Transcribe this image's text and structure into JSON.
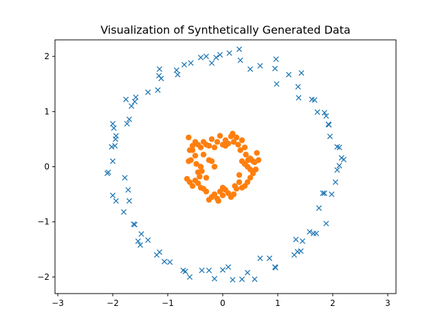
{
  "chart_data": {
    "type": "scatter",
    "title": "Visualization of Synthetically Generated Data",
    "xlabel": "",
    "ylabel": "",
    "xlim": [
      -3.05,
      3.15
    ],
    "ylim": [
      -2.3,
      2.3
    ],
    "xticks": [
      -3,
      -2,
      -1,
      0,
      1,
      2,
      3
    ],
    "yticks": [
      -2,
      -1,
      0,
      1,
      2
    ],
    "grid": false,
    "series": [
      {
        "marker": "x",
        "color": "#1f77b4",
        "points": [
          [
            -2.1,
            -0.12
          ],
          [
            -2.08,
            -0.1
          ],
          [
            -2.0,
            -0.52
          ],
          [
            -1.94,
            -0.62
          ],
          [
            -1.8,
            -0.82
          ],
          [
            -1.72,
            -0.42
          ],
          [
            -1.7,
            -0.62
          ],
          [
            -1.78,
            -0.2
          ],
          [
            -1.62,
            -1.04
          ],
          [
            -1.6,
            -1.05
          ],
          [
            -1.54,
            -1.35
          ],
          [
            -1.5,
            -1.42
          ],
          [
            -1.48,
            -1.22
          ],
          [
            -1.36,
            -1.33
          ],
          [
            -1.2,
            -1.6
          ],
          [
            -1.15,
            -1.55
          ],
          [
            -1.06,
            -1.72
          ],
          [
            -0.96,
            -1.73
          ],
          [
            -0.72,
            -1.88
          ],
          [
            -0.68,
            -1.9
          ],
          [
            -0.6,
            -2.0
          ],
          [
            -0.38,
            -1.88
          ],
          [
            -0.25,
            -1.88
          ],
          [
            -0.15,
            -2.03
          ],
          [
            0.0,
            -1.87
          ],
          [
            0.1,
            -1.82
          ],
          [
            0.18,
            -2.05
          ],
          [
            0.35,
            -2.04
          ],
          [
            0.45,
            -1.92
          ],
          [
            0.58,
            -2.04
          ],
          [
            0.68,
            -1.66
          ],
          [
            0.85,
            -1.66
          ],
          [
            0.95,
            -1.82
          ],
          [
            0.96,
            -1.83
          ],
          [
            1.3,
            -1.6
          ],
          [
            1.33,
            -1.32
          ],
          [
            1.36,
            -1.54
          ],
          [
            1.42,
            -1.53
          ],
          [
            1.45,
            -1.35
          ],
          [
            1.58,
            -1.18
          ],
          [
            1.65,
            -1.21
          ],
          [
            1.7,
            -1.21
          ],
          [
            1.75,
            -0.75
          ],
          [
            1.82,
            -0.48
          ],
          [
            1.85,
            -0.48
          ],
          [
            1.88,
            -1.03
          ],
          [
            1.98,
            -0.5
          ],
          [
            2.05,
            -0.28
          ],
          [
            2.08,
            -0.06
          ],
          [
            2.12,
            0.02
          ],
          [
            2.16,
            0.16
          ],
          [
            2.2,
            0.13
          ],
          [
            2.12,
            0.35
          ],
          [
            2.08,
            0.36
          ],
          [
            1.95,
            0.55
          ],
          [
            1.93,
            0.76
          ],
          [
            1.92,
            0.77
          ],
          [
            1.88,
            0.92
          ],
          [
            1.85,
            0.98
          ],
          [
            1.72,
            0.99
          ],
          [
            1.67,
            1.21
          ],
          [
            1.62,
            1.22
          ],
          [
            1.38,
            1.25
          ],
          [
            1.37,
            1.45
          ],
          [
            1.43,
            1.7
          ],
          [
            1.2,
            1.67
          ],
          [
            0.98,
            1.5
          ],
          [
            0.95,
            1.78
          ],
          [
            0.97,
            1.95
          ],
          [
            0.68,
            1.83
          ],
          [
            0.5,
            1.77
          ],
          [
            0.32,
            1.93
          ],
          [
            0.3,
            2.13
          ],
          [
            0.12,
            2.06
          ],
          [
            -0.05,
            2.03
          ],
          [
            -0.12,
            1.98
          ],
          [
            -0.2,
            1.88
          ],
          [
            -0.3,
            2.0
          ],
          [
            -0.4,
            1.98
          ],
          [
            -0.58,
            1.88
          ],
          [
            -0.7,
            1.85
          ],
          [
            -0.82,
            1.67
          ],
          [
            -0.84,
            1.75
          ],
          [
            -1.12,
            1.6
          ],
          [
            -1.15,
            1.77
          ],
          [
            -1.16,
            1.65
          ],
          [
            -1.18,
            1.39
          ],
          [
            -1.36,
            1.35
          ],
          [
            -1.58,
            1.26
          ],
          [
            -1.6,
            1.18
          ],
          [
            -1.66,
            1.1
          ],
          [
            -1.76,
            1.22
          ],
          [
            -1.7,
            0.86
          ],
          [
            -1.74,
            0.78
          ],
          [
            -1.94,
            0.56
          ],
          [
            -1.95,
            0.5
          ],
          [
            -1.96,
            0.38
          ],
          [
            -1.98,
            0.7
          ],
          [
            -2.0,
            0.78
          ],
          [
            -2.02,
            0.36
          ],
          [
            -2.0,
            0.1
          ]
        ]
      },
      {
        "marker": "o",
        "color": "#ff7f0e",
        "points": [
          [
            -0.62,
            0.53
          ],
          [
            -0.6,
            0.3
          ],
          [
            -0.55,
            0.38
          ],
          [
            -0.5,
            0.45
          ],
          [
            -0.45,
            0.4
          ],
          [
            -0.4,
            0.35
          ],
          [
            -0.35,
            0.45
          ],
          [
            -0.3,
            0.4
          ],
          [
            -0.25,
            0.38
          ],
          [
            -0.2,
            0.5
          ],
          [
            -0.15,
            0.35
          ],
          [
            -0.1,
            0.45
          ],
          [
            -0.05,
            0.56
          ],
          [
            0.0,
            0.4
          ],
          [
            0.05,
            0.48
          ],
          [
            0.1,
            0.42
          ],
          [
            0.15,
            0.55
          ],
          [
            0.18,
            0.6
          ],
          [
            0.2,
            0.45
          ],
          [
            0.25,
            0.53
          ],
          [
            0.28,
            0.4
          ],
          [
            0.32,
            0.3
          ],
          [
            0.35,
            0.48
          ],
          [
            0.4,
            0.35
          ],
          [
            0.42,
            0.22
          ],
          [
            0.46,
            0.12
          ],
          [
            0.5,
            0.15
          ],
          [
            0.55,
            0.1
          ],
          [
            0.58,
            0.08
          ],
          [
            0.62,
            0.25
          ],
          [
            0.65,
            0.12
          ],
          [
            0.6,
            -0.05
          ],
          [
            0.55,
            -0.12
          ],
          [
            0.5,
            -0.2
          ],
          [
            0.45,
            -0.28
          ],
          [
            0.4,
            -0.35
          ],
          [
            0.35,
            -0.38
          ],
          [
            0.3,
            -0.28
          ],
          [
            0.25,
            -0.4
          ],
          [
            0.2,
            -0.5
          ],
          [
            0.15,
            -0.55
          ],
          [
            0.1,
            -0.48
          ],
          [
            0.05,
            -0.42
          ],
          [
            0.0,
            -0.38
          ],
          [
            -0.05,
            -0.45
          ],
          [
            -0.1,
            -0.58
          ],
          [
            -0.15,
            -0.5
          ],
          [
            -0.2,
            -0.55
          ],
          [
            -0.25,
            -0.6
          ],
          [
            -0.3,
            -0.45
          ],
          [
            -0.35,
            -0.4
          ],
          [
            -0.4,
            -0.38
          ],
          [
            -0.45,
            -0.3
          ],
          [
            -0.5,
            -0.25
          ],
          [
            -0.55,
            -0.35
          ],
          [
            -0.6,
            -0.28
          ],
          [
            -0.65,
            -0.22
          ],
          [
            -0.62,
            0.1
          ],
          [
            -0.58,
            0.12
          ],
          [
            -0.5,
            0.2
          ],
          [
            -0.45,
            -0.1
          ],
          [
            -0.4,
            0.0
          ],
          [
            -0.38,
            -0.08
          ],
          [
            -0.42,
            -0.18
          ],
          [
            -0.48,
            0.05
          ],
          [
            -0.35,
            0.22
          ],
          [
            -0.25,
            0.12
          ],
          [
            -0.2,
            0.1
          ],
          [
            -0.3,
            -0.2
          ],
          [
            -0.08,
            -0.62
          ],
          [
            0.0,
            -0.52
          ],
          [
            0.45,
            0.0
          ],
          [
            0.4,
            0.05
          ],
          [
            0.35,
            0.1
          ],
          [
            0.5,
            -0.05
          ],
          [
            0.3,
            -0.15
          ],
          [
            0.22,
            -0.35
          ],
          [
            -0.55,
            0.3
          ],
          [
            -0.15,
            0.0
          ],
          [
            0.05,
            0.38
          ]
        ]
      }
    ]
  }
}
